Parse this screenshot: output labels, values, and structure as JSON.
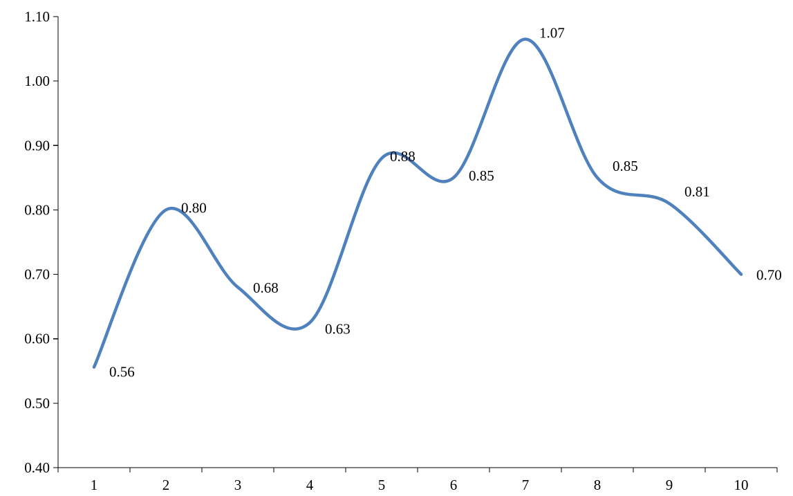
{
  "chart_data": {
    "type": "line",
    "title": "",
    "xlabel": "",
    "ylabel": "",
    "smooth": true,
    "grid": false,
    "legend": "none",
    "categories": [
      "1",
      "2",
      "3",
      "4",
      "5",
      "6",
      "7",
      "8",
      "9",
      "10"
    ],
    "ylim": [
      0.4,
      1.1
    ],
    "yticks": [
      "0.40",
      "0.50",
      "0.60",
      "0.70",
      "0.80",
      "0.90",
      "1.00",
      "1.10"
    ],
    "series": [
      {
        "values": [
          0.556,
          0.8,
          0.68,
          0.625,
          0.88,
          0.85,
          1.065,
          0.85,
          0.81,
          0.7
        ],
        "labels": [
          "0.56",
          "0.80",
          "0.68",
          "0.63",
          "0.88",
          "0.85",
          "1.07",
          "0.85",
          "0.81",
          "0.70"
        ],
        "color": "#4F81BD"
      }
    ]
  }
}
